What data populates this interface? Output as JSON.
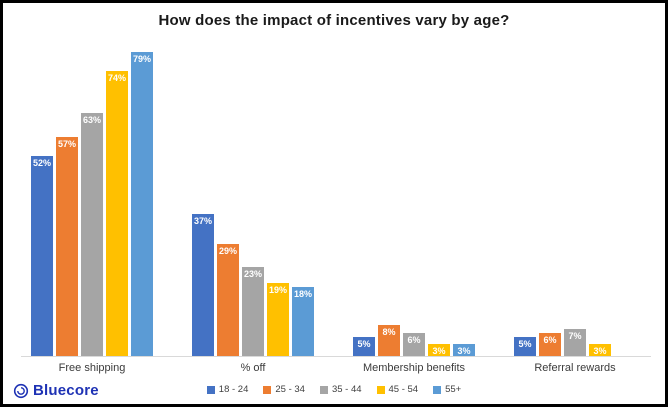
{
  "title": "How does the impact of incentives vary by age?",
  "brand": {
    "name": "Bluecore",
    "color": "#1e32b4"
  },
  "chart_data": {
    "type": "bar",
    "title": "How does the impact of incentives vary by age?",
    "categories": [
      "Free shipping",
      "% off",
      "Membership benefits",
      "Referral rewards"
    ],
    "series": [
      {
        "name": "18 - 24",
        "color": "#4472C4",
        "values": [
          52,
          37,
          5,
          5
        ]
      },
      {
        "name": "25 - 34",
        "color": "#ED7D31",
        "values": [
          57,
          29,
          8,
          6
        ]
      },
      {
        "name": "35 - 44",
        "color": "#A5A5A5",
        "values": [
          63,
          23,
          6,
          7
        ]
      },
      {
        "name": "45 - 54",
        "color": "#FFC000",
        "values": [
          74,
          19,
          3,
          3
        ]
      },
      {
        "name": "55+",
        "color": "#5B9BD5",
        "values": [
          79,
          18,
          3,
          null
        ]
      }
    ],
    "value_suffix": "%",
    "data_labels": "inside-top, white, bold",
    "xlabel": "",
    "ylabel": "",
    "ylim": [
      0,
      82
    ],
    "grid": false,
    "y_axis_visible": false,
    "legend_position": "bottom-center"
  }
}
